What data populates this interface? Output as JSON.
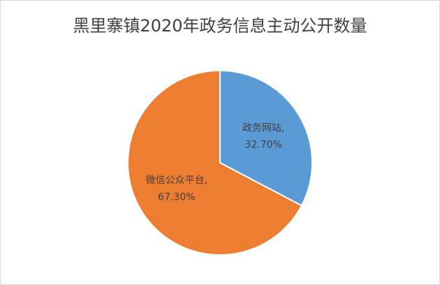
{
  "chart_data": {
    "type": "pie",
    "title": "黑里寨镇2020年政务信息主动公开数量",
    "categories": [
      "政务网站",
      "微信公众平台"
    ],
    "values": [
      32.7,
      67.3
    ],
    "value_labels": [
      "32.70%",
      "67.30%"
    ],
    "label_separator": ",",
    "colors": [
      "#5b9bd5",
      "#ed7d31"
    ]
  }
}
